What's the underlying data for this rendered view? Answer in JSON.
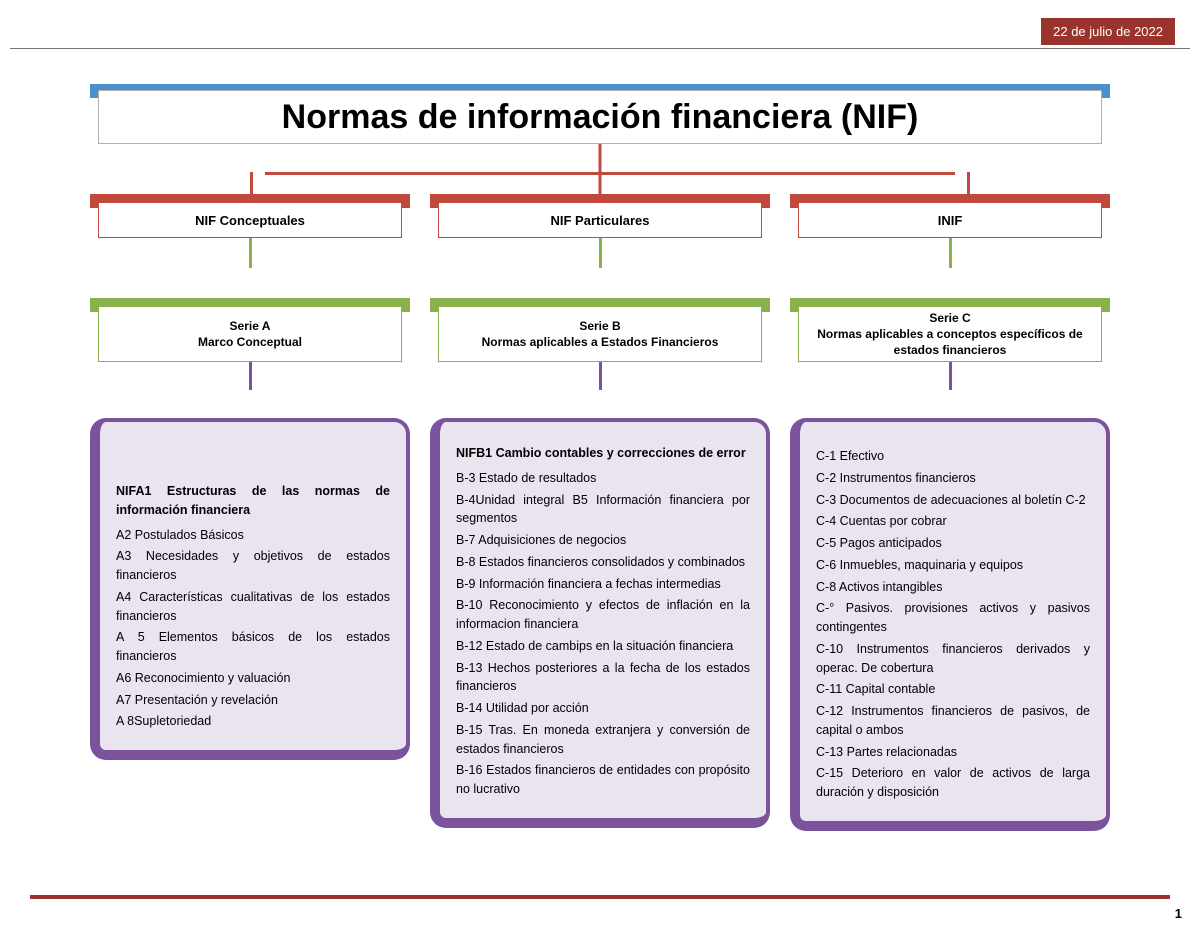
{
  "meta": {
    "date": "22 de julio de 2022",
    "page_number": "1"
  },
  "title": "Normas de información financiera (NIF)",
  "colors": {
    "title_accent": "#4b8fcc",
    "category_accent": "#c24a3d",
    "serie_accent": "#8bb14f",
    "detail_accent": "#7b539d",
    "detail_fill": "#e9e4f0",
    "date_bg": "#99332b"
  },
  "columns": [
    {
      "category": "NIF Conceptuales",
      "serie_title": "Serie A",
      "serie_sub": "Marco Conceptual",
      "detail_header": "NIFA1 Estructuras de las normas de información financiera",
      "items": [
        "A2 Postulados Básicos",
        "A3 Necesidades y objetivos de estados financieros",
        "A4 Características cualitativas de los estados financieros",
        "A 5 Elementos básicos de los estados financieros",
        "A6 Reconocimiento y valuación",
        "A7 Presentación y revelación",
        "A 8Supletoriedad"
      ]
    },
    {
      "category": "NIF Particulares",
      "serie_title": "Serie B",
      "serie_sub": "Normas aplicables a Estados Financieros",
      "detail_header": "NIFB1 Cambio contables y correcciones de error",
      "items": [
        "B-3 Estado de resultados",
        "B-4Unidad integral B5 Información financiera por segmentos",
        "B-7 Adquisiciones de negocios",
        "B-8 Estados financieros consolidados y combinados",
        "B-9 Información financiera a fechas intermedias",
        "B-10 Reconocimiento y efectos de inflación en la informacion financiera",
        "B-12 Estado de cambips en la situación financiera",
        "B-13 Hechos posteriores a la fecha de los estados financieros",
        "B-14 Utilidad por acción",
        "B-15 Tras. En moneda extranjera y conversión de estados financieros",
        "B-16 Estados financieros de entidades con propósito no lucrativo"
      ]
    },
    {
      "category": "INIF",
      "serie_title": "Serie C",
      "serie_sub": "Normas aplicables a conceptos específicos de estados financieros",
      "detail_header": "",
      "items": [
        "C-1 Efectivo",
        "C-2 Instrumentos financieros",
        "C-3 Documentos de adecuaciones al boletín C-2",
        "C-4 Cuentas por cobrar",
        "C-5 Pagos anticipados",
        "C-6 Inmuebles, maquinaria y equipos",
        "C-8 Activos intangibles",
        "C-° Pasivos. provisiones activos y pasivos contingentes",
        "C-10 Instrumentos financieros derivados y operac. De cobertura",
        "C-11 Capital contable",
        "C-12 Instrumentos financieros de pasivos, de capital o ambos",
        "C-13 Partes relacionadas",
        "C-15 Deterioro en valor de activos de larga duración y disposición"
      ]
    }
  ]
}
